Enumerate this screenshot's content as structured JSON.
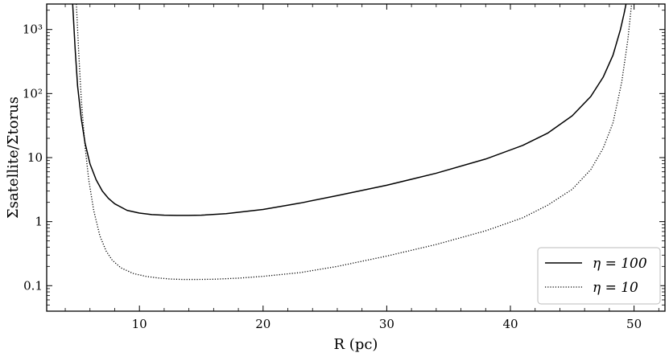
{
  "chart_data": {
    "type": "line",
    "title": "",
    "xlabel": "R (pc)",
    "ylabel": "Σsatellite/Σtorus",
    "xlim": [
      2.5,
      52.5
    ],
    "ylim": [
      0.04,
      2500
    ],
    "yscale": "log",
    "grid": false,
    "legend_position": "bottom-right",
    "x_ticks": [
      10,
      20,
      30,
      40,
      50
    ],
    "x_tick_labels": [
      "10",
      "20",
      "30",
      "40",
      "50"
    ],
    "y_ticks": [
      0.1,
      1,
      10,
      100,
      1000
    ],
    "y_tick_labels": [
      "0.1",
      "1",
      "10",
      "10²",
      "10³"
    ],
    "series": [
      {
        "name": "η = 100",
        "style": "solid",
        "x": [
          4.6,
          4.8,
          5.0,
          5.3,
          5.6,
          6.0,
          6.5,
          7.0,
          7.5,
          8.0,
          9.0,
          10.0,
          11.0,
          12.0,
          13.0,
          14.0,
          15.0,
          17.0,
          20.0,
          23.0,
          26.0,
          30.0,
          34.0,
          38.0,
          41.0,
          43.0,
          45.0,
          46.5,
          47.5,
          48.3,
          48.9,
          49.2,
          49.35
        ],
        "y": [
          2500,
          500,
          130,
          40,
          17,
          8,
          4.5,
          3.0,
          2.3,
          1.9,
          1.5,
          1.36,
          1.29,
          1.26,
          1.25,
          1.25,
          1.26,
          1.33,
          1.55,
          1.95,
          2.55,
          3.7,
          5.7,
          9.5,
          15.5,
          24,
          45,
          90,
          180,
          400,
          1000,
          1800,
          2500
        ]
      },
      {
        "name": "η = 10",
        "style": "dotted",
        "x": [
          4.9,
          5.1,
          5.3,
          5.6,
          5.9,
          6.3,
          6.8,
          7.3,
          7.8,
          8.5,
          9.5,
          10.5,
          11.5,
          12.5,
          13.5,
          14.5,
          16.0,
          18.0,
          20.0,
          23.0,
          26.0,
          30.0,
          34.0,
          38.0,
          41.0,
          43.0,
          45.0,
          46.5,
          47.5,
          48.3,
          49.0,
          49.5,
          49.8
        ],
        "y": [
          2500,
          400,
          80,
          15,
          4.5,
          1.5,
          0.6,
          0.35,
          0.25,
          0.19,
          0.155,
          0.14,
          0.132,
          0.127,
          0.125,
          0.125,
          0.126,
          0.131,
          0.14,
          0.16,
          0.2,
          0.29,
          0.44,
          0.72,
          1.15,
          1.8,
          3.2,
          6.5,
          14,
          35,
          150,
          700,
          2500
        ]
      }
    ]
  }
}
